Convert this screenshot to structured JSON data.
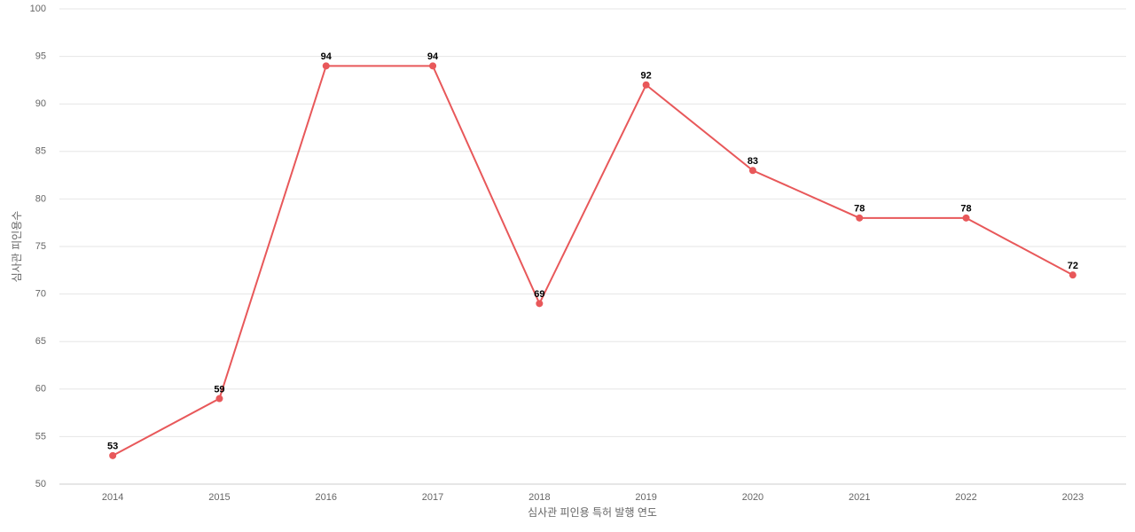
{
  "chart_data": {
    "type": "line",
    "x_label": "심사관 피인용 특허 발행 연도",
    "y_label": "심사관 피인용수",
    "categories": [
      "2014",
      "2015",
      "2016",
      "2017",
      "2018",
      "2019",
      "2020",
      "2021",
      "2022",
      "2023"
    ],
    "series": [
      {
        "color": "#e8585a",
        "values": [
          53,
          59,
          94,
          94,
          69,
          92,
          83,
          78,
          78,
          72
        ]
      }
    ],
    "ylim": [
      50,
      100
    ],
    "yticks": [
      50,
      55,
      60,
      65,
      70,
      75,
      80,
      85,
      90,
      95,
      100
    ],
    "grid": true
  }
}
